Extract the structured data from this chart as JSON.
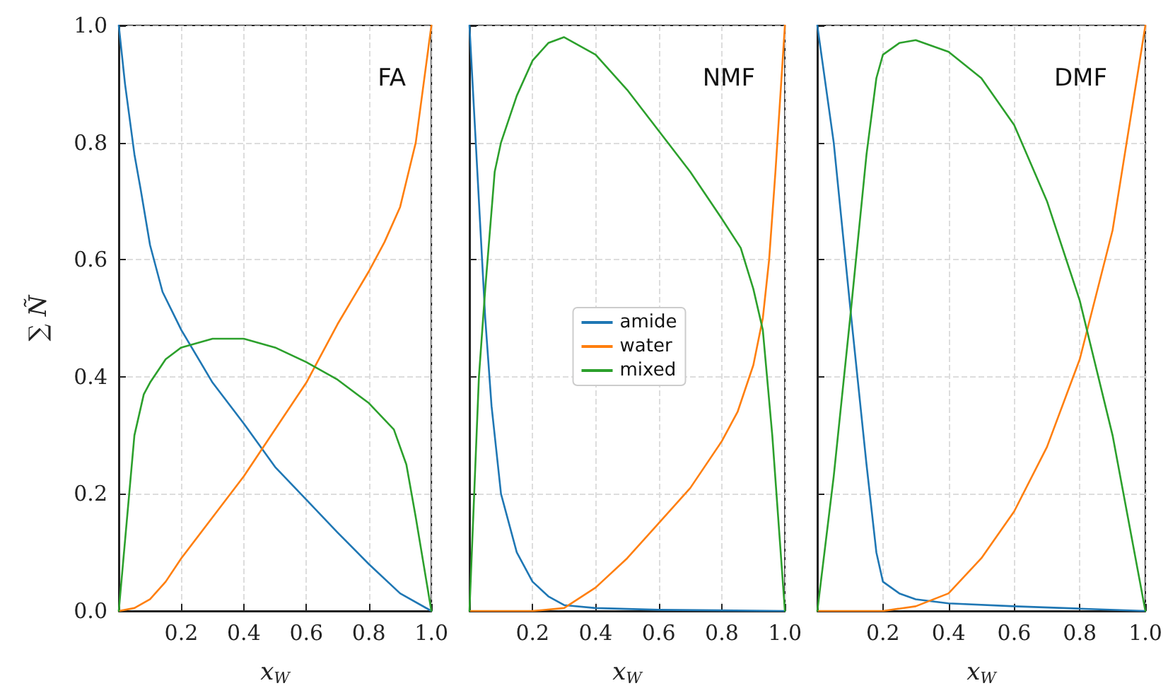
{
  "chart_data": [
    {
      "type": "line",
      "title": "FA",
      "xlabel": "x$_{W}$",
      "ylabel": "∑ Ñ",
      "xlim": [
        0,
        1
      ],
      "ylim": [
        0,
        1
      ],
      "grid": true,
      "legend": false,
      "marker": "none",
      "line_style": "solid",
      "xticks": [
        {
          "value": 0,
          "label": null
        },
        {
          "value": 0.2,
          "label": "0.2"
        },
        {
          "value": 0.4,
          "label": "0.4"
        },
        {
          "value": 0.6,
          "label": "0.6"
        },
        {
          "value": 0.8,
          "label": "0.8"
        },
        {
          "value": 1,
          "label": "1.0"
        }
      ],
      "yticks": [
        {
          "value": 0,
          "label": "0.0"
        },
        {
          "value": 0.2,
          "label": "0.2"
        },
        {
          "value": 0.4,
          "label": "0.4"
        },
        {
          "value": 0.6,
          "label": "0.6"
        },
        {
          "value": 0.8,
          "label": "0.8"
        },
        {
          "value": 1,
          "label": "1.0"
        }
      ],
      "series": [
        {
          "color": "#1f77b4",
          "x": [
            0,
            0.02,
            0.05,
            0.07,
            0.1,
            0.14,
            0.2,
            0.3,
            0.4,
            0.5,
            0.6,
            0.7,
            0.8,
            0.9,
            1
          ],
          "values": [
            1,
            0.9,
            0.78,
            0.72,
            0.625,
            0.545,
            0.48,
            0.39,
            0.32,
            0.246,
            0.19,
            0.134,
            0.08,
            0.03,
            0
          ]
        },
        {
          "color": "#ff7f0e",
          "x": [
            0,
            0.05,
            0.1,
            0.15,
            0.2,
            0.3,
            0.4,
            0.5,
            0.6,
            0.7,
            0.8,
            0.85,
            0.9,
            0.95,
            1
          ],
          "values": [
            0,
            0.005,
            0.02,
            0.05,
            0.09,
            0.16,
            0.23,
            0.31,
            0.39,
            0.49,
            0.58,
            0.63,
            0.69,
            0.8,
            1
          ]
        },
        {
          "color": "#2ca02c",
          "x": [
            0,
            0.05,
            0.08,
            0.1,
            0.15,
            0.2,
            0.3,
            0.4,
            0.5,
            0.6,
            0.7,
            0.8,
            0.88,
            0.92,
            0.95,
            1
          ],
          "values": [
            0,
            0.3,
            0.37,
            0.39,
            0.43,
            0.45,
            0.465,
            0.465,
            0.45,
            0.425,
            0.395,
            0.355,
            0.31,
            0.25,
            0.16,
            0
          ]
        }
      ]
    },
    {
      "type": "line",
      "title": "NMF",
      "xlabel": "x$_{W}$",
      "xlim": [
        0,
        1
      ],
      "ylim": [
        0,
        1
      ],
      "grid": true,
      "legend": "center",
      "marker": "none",
      "line_style": "solid",
      "tick_labels": "x",
      "xticks": [
        {
          "value": 0,
          "label": null
        },
        {
          "value": 0.2,
          "label": "0.2"
        },
        {
          "value": 0.4,
          "label": "0.4"
        },
        {
          "value": 0.6,
          "label": "0.6"
        },
        {
          "value": 0.8,
          "label": "0.8"
        },
        {
          "value": 1,
          "label": "1.0"
        }
      ],
      "yticks": [
        {
          "value": 0,
          "label": null
        },
        {
          "value": 0.2,
          "label": null
        },
        {
          "value": 0.4,
          "label": null
        },
        {
          "value": 0.6,
          "label": null
        },
        {
          "value": 0.8,
          "label": null
        },
        {
          "value": 1,
          "label": null
        }
      ],
      "series": [
        {
          "name": "amide",
          "color": "#1f77b4",
          "x": [
            0,
            0.02,
            0.04,
            0.05,
            0.07,
            0.1,
            0.15,
            0.2,
            0.25,
            0.3,
            0.4,
            0.6,
            1
          ],
          "values": [
            1,
            0.8,
            0.6,
            0.5,
            0.35,
            0.2,
            0.1,
            0.05,
            0.025,
            0.01,
            0.005,
            0.002,
            0
          ]
        },
        {
          "name": "water",
          "color": "#ff7f0e",
          "x": [
            0,
            0.2,
            0.3,
            0.4,
            0.5,
            0.6,
            0.7,
            0.8,
            0.85,
            0.9,
            0.93,
            0.95,
            0.97,
            1
          ],
          "values": [
            0,
            0,
            0.005,
            0.04,
            0.09,
            0.15,
            0.21,
            0.29,
            0.34,
            0.42,
            0.5,
            0.6,
            0.75,
            1
          ]
        },
        {
          "name": "mixed",
          "color": "#2ca02c",
          "x": [
            0,
            0.03,
            0.05,
            0.08,
            0.1,
            0.15,
            0.2,
            0.25,
            0.3,
            0.4,
            0.5,
            0.6,
            0.7,
            0.8,
            0.86,
            0.9,
            0.93,
            0.96,
            1
          ],
          "values": [
            0,
            0.4,
            0.55,
            0.75,
            0.8,
            0.88,
            0.94,
            0.97,
            0.98,
            0.95,
            0.89,
            0.82,
            0.75,
            0.67,
            0.62,
            0.55,
            0.48,
            0.3,
            0
          ]
        }
      ]
    },
    {
      "type": "line",
      "title": "DMF",
      "xlabel": "x$_{W}$",
      "xlim": [
        0,
        1
      ],
      "ylim": [
        0,
        1
      ],
      "grid": true,
      "legend": false,
      "marker": "none",
      "line_style": "solid",
      "tick_labels": "x",
      "xticks": [
        {
          "value": 0,
          "label": null
        },
        {
          "value": 0.2,
          "label": "0.2"
        },
        {
          "value": 0.4,
          "label": "0.4"
        },
        {
          "value": 0.6,
          "label": "0.6"
        },
        {
          "value": 0.8,
          "label": "0.8"
        },
        {
          "value": 1,
          "label": "1.0"
        }
      ],
      "yticks": [
        {
          "value": 0,
          "label": null
        },
        {
          "value": 0.2,
          "label": null
        },
        {
          "value": 0.4,
          "label": null
        },
        {
          "value": 0.6,
          "label": null
        },
        {
          "value": 0.8,
          "label": null
        },
        {
          "value": 1,
          "label": null
        }
      ],
      "series": [
        {
          "color": "#1f77b4",
          "x": [
            0,
            0.05,
            0.1,
            0.15,
            0.18,
            0.2,
            0.25,
            0.3,
            0.4,
            0.6,
            0.8,
            1
          ],
          "values": [
            1,
            0.8,
            0.52,
            0.25,
            0.1,
            0.05,
            0.03,
            0.02,
            0.013,
            0.008,
            0.004,
            0
          ]
        },
        {
          "color": "#ff7f0e",
          "x": [
            0,
            0.2,
            0.3,
            0.4,
            0.5,
            0.6,
            0.7,
            0.8,
            0.9,
            1
          ],
          "values": [
            0,
            0,
            0.008,
            0.03,
            0.09,
            0.17,
            0.28,
            0.43,
            0.65,
            1
          ]
        },
        {
          "color": "#2ca02c",
          "x": [
            0,
            0.05,
            0.1,
            0.15,
            0.18,
            0.2,
            0.25,
            0.3,
            0.4,
            0.5,
            0.6,
            0.7,
            0.8,
            0.9,
            1
          ],
          "values": [
            0,
            0.23,
            0.5,
            0.78,
            0.91,
            0.95,
            0.97,
            0.975,
            0.955,
            0.91,
            0.83,
            0.7,
            0.53,
            0.3,
            0
          ]
        }
      ]
    }
  ]
}
